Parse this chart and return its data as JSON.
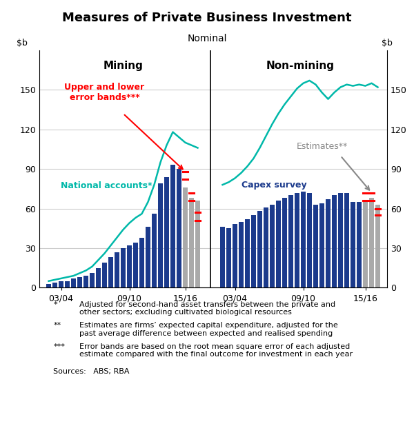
{
  "title": "Measures of Private Business Investment",
  "subtitle": "Nominal",
  "ylim": [
    0,
    180
  ],
  "yticks": [
    0,
    30,
    60,
    90,
    120,
    150
  ],
  "line_color": "#00b8a9",
  "bar_color_blue": "#1b3a8c",
  "bar_color_gray": "#aaaaaa",
  "error_color": "#ff0000",
  "mining_bars": [
    {
      "x": 0,
      "v": 3,
      "gray": false
    },
    {
      "x": 1,
      "v": 4,
      "gray": false
    },
    {
      "x": 2,
      "v": 5,
      "gray": false
    },
    {
      "x": 3,
      "v": 5,
      "gray": false
    },
    {
      "x": 4,
      "v": 7,
      "gray": false
    },
    {
      "x": 5,
      "v": 8,
      "gray": false
    },
    {
      "x": 6,
      "v": 9,
      "gray": false
    },
    {
      "x": 7,
      "v": 11,
      "gray": false
    },
    {
      "x": 8,
      "v": 15,
      "gray": false
    },
    {
      "x": 9,
      "v": 19,
      "gray": false
    },
    {
      "x": 10,
      "v": 23,
      "gray": false
    },
    {
      "x": 11,
      "v": 27,
      "gray": false
    },
    {
      "x": 12,
      "v": 30,
      "gray": false
    },
    {
      "x": 13,
      "v": 32,
      "gray": false
    },
    {
      "x": 14,
      "v": 34,
      "gray": false
    },
    {
      "x": 15,
      "v": 38,
      "gray": false
    },
    {
      "x": 16,
      "v": 46,
      "gray": false
    },
    {
      "x": 17,
      "v": 56,
      "gray": false
    },
    {
      "x": 18,
      "v": 79,
      "gray": false
    },
    {
      "x": 19,
      "v": 84,
      "gray": false
    },
    {
      "x": 20,
      "v": 93,
      "gray": false
    },
    {
      "x": 21,
      "v": 90,
      "gray": false
    },
    {
      "x": 22,
      "v": 76,
      "gray": true
    },
    {
      "x": 23,
      "v": 68,
      "gray": true
    },
    {
      "x": 24,
      "v": 66,
      "gray": true
    }
  ],
  "mining_errors": [
    {
      "x": 22,
      "upper": 88,
      "lower": 82
    },
    {
      "x": 23,
      "upper": 72,
      "lower": 66
    },
    {
      "x": 24,
      "upper": 57,
      "lower": 51
    }
  ],
  "mining_line_x": [
    0,
    1,
    2,
    3,
    4,
    5,
    6,
    7,
    8,
    9,
    10,
    11,
    12,
    13,
    14,
    15,
    16,
    17,
    18,
    19,
    20,
    21,
    22,
    23,
    24
  ],
  "mining_line_y": [
    5,
    6,
    7,
    8,
    9,
    11,
    13,
    16,
    21,
    26,
    32,
    38,
    44,
    49,
    53,
    56,
    65,
    78,
    95,
    108,
    118,
    114,
    110,
    108,
    106
  ],
  "nonmining_bars": [
    {
      "x": 0,
      "v": 46,
      "gray": false
    },
    {
      "x": 1,
      "v": 45,
      "gray": false
    },
    {
      "x": 2,
      "v": 48,
      "gray": false
    },
    {
      "x": 3,
      "v": 50,
      "gray": false
    },
    {
      "x": 4,
      "v": 52,
      "gray": false
    },
    {
      "x": 5,
      "v": 55,
      "gray": false
    },
    {
      "x": 6,
      "v": 58,
      "gray": false
    },
    {
      "x": 7,
      "v": 61,
      "gray": false
    },
    {
      "x": 8,
      "v": 63,
      "gray": false
    },
    {
      "x": 9,
      "v": 66,
      "gray": false
    },
    {
      "x": 10,
      "v": 68,
      "gray": false
    },
    {
      "x": 11,
      "v": 70,
      "gray": false
    },
    {
      "x": 12,
      "v": 72,
      "gray": false
    },
    {
      "x": 13,
      "v": 73,
      "gray": false
    },
    {
      "x": 14,
      "v": 72,
      "gray": false
    },
    {
      "x": 15,
      "v": 63,
      "gray": false
    },
    {
      "x": 16,
      "v": 64,
      "gray": false
    },
    {
      "x": 17,
      "v": 67,
      "gray": false
    },
    {
      "x": 18,
      "v": 70,
      "gray": false
    },
    {
      "x": 19,
      "v": 72,
      "gray": false
    },
    {
      "x": 20,
      "v": 72,
      "gray": false
    },
    {
      "x": 21,
      "v": 65,
      "gray": false
    },
    {
      "x": 22,
      "v": 65,
      "gray": false
    },
    {
      "x": 23,
      "v": 66,
      "gray": true
    },
    {
      "x": 24,
      "v": 68,
      "gray": true
    },
    {
      "x": 25,
      "v": 63,
      "gray": true
    }
  ],
  "nonmining_errors": [
    {
      "x": 23,
      "upper": 72,
      "lower": 66
    },
    {
      "x": 24,
      "upper": 72,
      "lower": 66
    },
    {
      "x": 25,
      "upper": 60,
      "lower": 55
    }
  ],
  "nonmining_line_x": [
    0,
    1,
    2,
    3,
    4,
    5,
    6,
    7,
    8,
    9,
    10,
    11,
    12,
    13,
    14,
    15,
    16,
    17,
    18,
    19,
    20,
    21,
    22,
    23,
    24,
    25
  ],
  "nonmining_line_y": [
    78,
    80,
    83,
    87,
    92,
    98,
    106,
    115,
    124,
    132,
    139,
    145,
    151,
    155,
    157,
    154,
    148,
    143,
    148,
    152,
    154,
    153,
    154,
    153,
    155,
    152
  ],
  "left_xtick_positions": [
    2,
    13,
    22
  ],
  "left_xtick_labels": [
    "03/04",
    "09/10",
    "15/16"
  ],
  "right_xtick_positions": [
    2,
    13,
    23
  ],
  "right_xtick_labels": [
    "03/04",
    "09/10",
    "15/16"
  ],
  "footnote_items": [
    {
      "mark": "*",
      "text": "Adjusted for second-hand asset transfers between the private and\nother sectors; excluding cultivated biological resources"
    },
    {
      "mark": "**",
      "text": "Estimates are firms’ expected capital expenditure, adjusted for the\npast average difference between expected and realised spending"
    },
    {
      "mark": "***",
      "text": "Error bands are based on the root mean square error of each adjusted\nestimate compared with the final outcome for investment in each year"
    }
  ],
  "sources": "Sources:   ABS; RBA"
}
